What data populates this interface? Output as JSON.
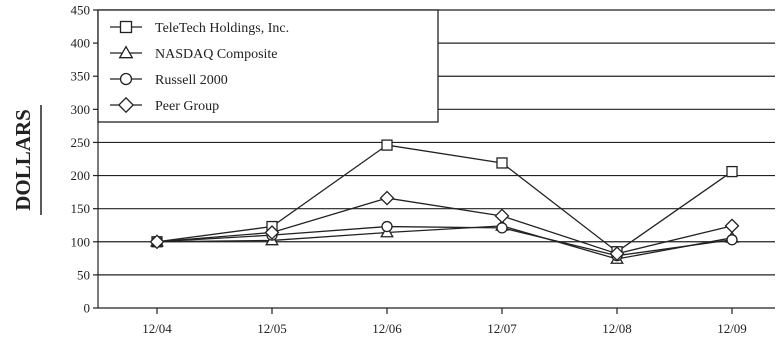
{
  "chart_data": {
    "type": "line",
    "title": "",
    "xlabel": "",
    "ylabel": "DOLLARS",
    "categories": [
      "12/04",
      "12/05",
      "12/06",
      "12/07",
      "12/08",
      "12/09"
    ],
    "ylim": [
      0,
      450
    ],
    "yticks": [
      0,
      50,
      100,
      150,
      200,
      250,
      300,
      350,
      400,
      450
    ],
    "grid": "horizontal",
    "legend_position": "top-left",
    "series": [
      {
        "name": "TeleTech Holdings, Inc.",
        "marker": "square",
        "values": [
          100,
          123,
          246,
          219,
          85,
          206
        ]
      },
      {
        "name": "NASDAQ Composite",
        "marker": "triangle",
        "values": [
          100,
          102,
          114,
          124,
          74,
          106
        ]
      },
      {
        "name": "Russell 2000",
        "marker": "circle",
        "values": [
          100,
          110,
          123,
          121,
          79,
          103
        ]
      },
      {
        "name": "Peer Group",
        "marker": "diamond",
        "values": [
          100,
          114,
          166,
          139,
          82,
          124
        ]
      }
    ]
  }
}
